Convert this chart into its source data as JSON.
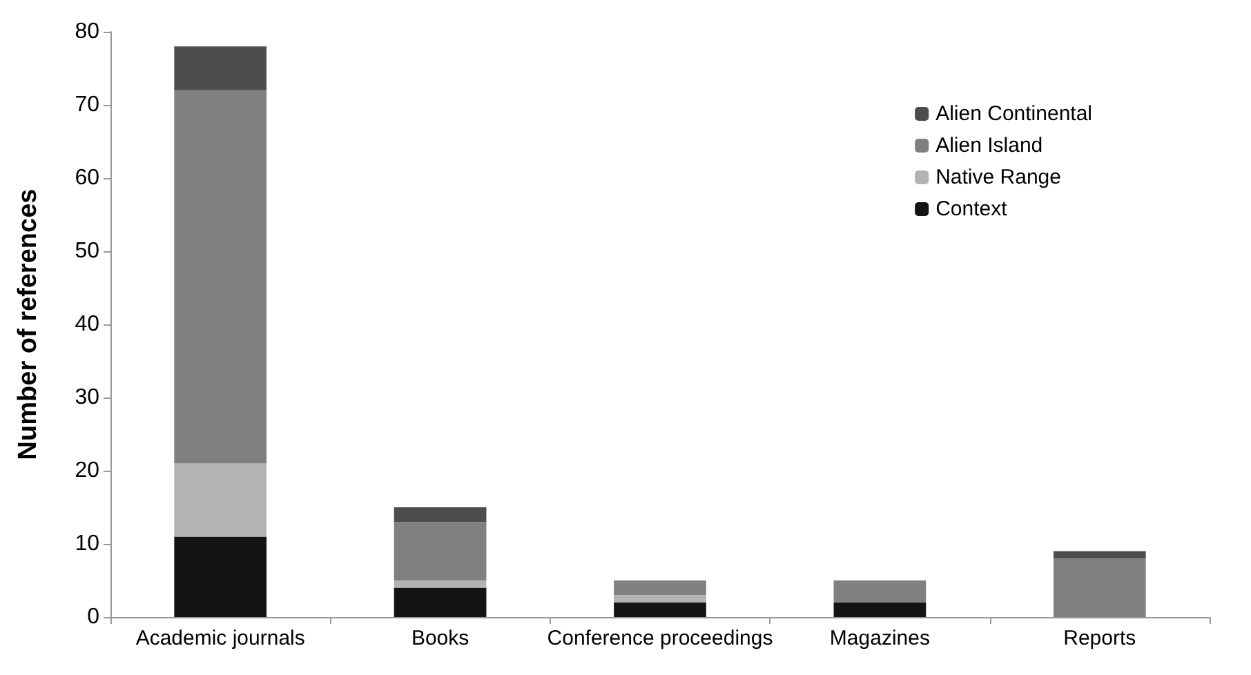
{
  "chart_data": {
    "type": "bar",
    "stacked": true,
    "ylabel": "Number of references",
    "categories": [
      "Academic journals",
      "Books",
      "Conference proceedings",
      "Magazines",
      "Reports"
    ],
    "series": [
      {
        "name": "Context",
        "color": "#141414",
        "values": [
          11,
          4,
          2,
          2,
          0
        ]
      },
      {
        "name": "Native Range",
        "color": "#b3b3b3",
        "values": [
          10,
          1,
          1,
          0,
          0
        ]
      },
      {
        "name": "Alien Island",
        "color": "#808080",
        "values": [
          51,
          8,
          2,
          3,
          8
        ]
      },
      {
        "name": "Alien Continental",
        "color": "#4d4d4d",
        "values": [
          6,
          2,
          0,
          0,
          1
        ]
      }
    ],
    "ylim": [
      0,
      80
    ],
    "yticks": [
      0,
      10,
      20,
      30,
      40,
      50,
      60,
      70,
      80
    ],
    "grid": false,
    "legend": "top right"
  }
}
